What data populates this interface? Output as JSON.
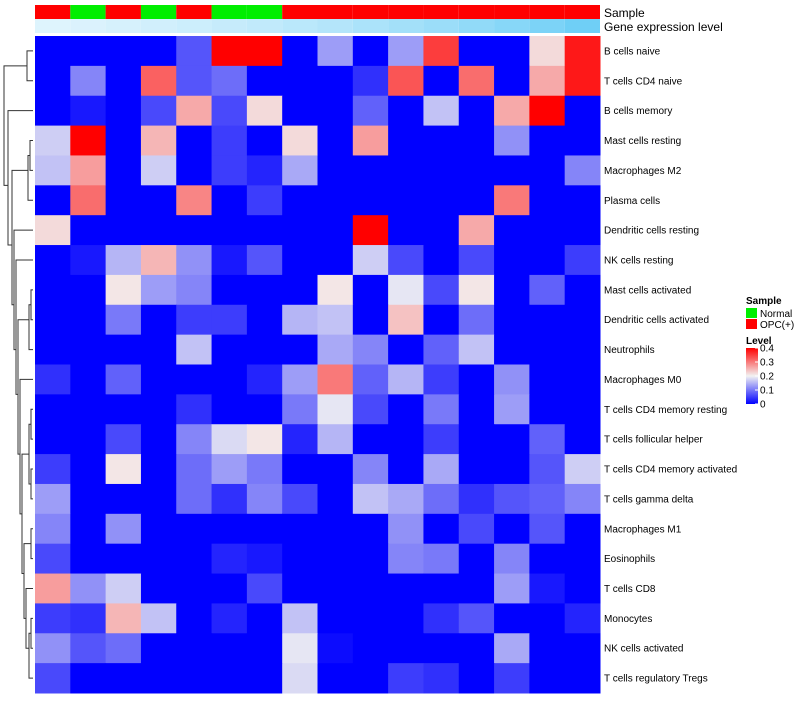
{
  "chart_data": {
    "type": "heatmap",
    "title": "",
    "rows": [
      "B cells naive",
      "T cells CD4 naive",
      "B cells memory",
      "Mast cells resting",
      "Macrophages M2",
      "Plasma cells",
      "Dendritic cells resting",
      "NK cells resting",
      "Mast cells activated",
      "Dendritic cells activated",
      "Neutrophils",
      "Macrophages M0",
      "T cells CD4 memory resting",
      "T cells follicular helper",
      "T cells CD4 memory activated",
      "T cells gamma delta",
      "Macrophages M1",
      "Eosinophils",
      "T cells CD8",
      "Monocytes",
      "NK cells activated",
      "T cells regulatory  Tregs"
    ],
    "values": [
      [
        0,
        0,
        0,
        0,
        0.07,
        0.4,
        0.4,
        0,
        0.13,
        0,
        0.13,
        0.35,
        0,
        0,
        0.22,
        0.38
      ],
      [
        0,
        0.11,
        0,
        0.32,
        0.07,
        0.09,
        0,
        0,
        0,
        0.04,
        0.33,
        0,
        0.31,
        0,
        0.26,
        0.38
      ],
      [
        0,
        0.02,
        0,
        0.06,
        0.26,
        0.06,
        0.22,
        0,
        0,
        0.08,
        0,
        0.16,
        0,
        0.26,
        0.4,
        0
      ],
      [
        0.17,
        0.4,
        0,
        0.25,
        0,
        0.05,
        0,
        0.22,
        0,
        0.27,
        0,
        0,
        0,
        0.12,
        0,
        0
      ],
      [
        0.16,
        0.27,
        0,
        0.17,
        0,
        0.05,
        0.03,
        0.14,
        0,
        0,
        0,
        0,
        0,
        0,
        0,
        0.11
      ],
      [
        0,
        0.31,
        0,
        0,
        0.29,
        0,
        0.05,
        0,
        0,
        0,
        0,
        0,
        0,
        0.3,
        0,
        0
      ],
      [
        0.22,
        0,
        0,
        0,
        0,
        0,
        0,
        0,
        0,
        0.4,
        0,
        0,
        0.26,
        0,
        0,
        0
      ],
      [
        0,
        0.02,
        0.15,
        0.25,
        0.12,
        0.02,
        0.07,
        0,
        0,
        0.17,
        0.06,
        0,
        0.06,
        0,
        0,
        0.05
      ],
      [
        0,
        0,
        0.21,
        0.13,
        0.11,
        0,
        0,
        0,
        0.21,
        0,
        0.19,
        0.06,
        0.21,
        0,
        0.08,
        0
      ],
      [
        0,
        0,
        0.1,
        0,
        0.05,
        0.05,
        0,
        0.15,
        0.16,
        0,
        0.24,
        0,
        0.09,
        0,
        0,
        0
      ],
      [
        0,
        0,
        0,
        0,
        0.16,
        0,
        0,
        0,
        0.14,
        0.11,
        0,
        0.08,
        0.16,
        0,
        0,
        0
      ],
      [
        0.04,
        0,
        0.08,
        0,
        0,
        0,
        0.03,
        0.13,
        0.3,
        0.08,
        0.15,
        0.05,
        0,
        0.12,
        0,
        0
      ],
      [
        0,
        0,
        0,
        0,
        0.04,
        0,
        0,
        0.1,
        0.19,
        0.06,
        0,
        0.1,
        0,
        0.13,
        0,
        0
      ],
      [
        0,
        0,
        0.06,
        0,
        0.11,
        0.18,
        0.21,
        0.03,
        0.15,
        0,
        0,
        0.05,
        0,
        0,
        0.08,
        0
      ],
      [
        0.05,
        0,
        0.21,
        0,
        0.09,
        0.13,
        0.1,
        0,
        0,
        0.11,
        0,
        0.14,
        0,
        0,
        0.07,
        0.17
      ],
      [
        0.13,
        0,
        0,
        0,
        0.09,
        0.04,
        0.11,
        0.06,
        0,
        0.16,
        0.14,
        0.09,
        0.04,
        0.07,
        0.08,
        0.11
      ],
      [
        0.11,
        0,
        0.12,
        0,
        0,
        0,
        0,
        0,
        0,
        0,
        0.12,
        0,
        0.06,
        0,
        0.07,
        0
      ],
      [
        0.06,
        0,
        0,
        0,
        0,
        0.03,
        0.02,
        0,
        0,
        0,
        0.11,
        0.1,
        0,
        0.11,
        0,
        0
      ],
      [
        0.27,
        0.12,
        0.17,
        0,
        0,
        0,
        0.06,
        0,
        0,
        0,
        0,
        0,
        0,
        0.13,
        0.02,
        0
      ],
      [
        0.05,
        0.04,
        0.25,
        0.16,
        0,
        0.03,
        0,
        0.16,
        0,
        0,
        0,
        0.04,
        0.07,
        0,
        0,
        0.03
      ],
      [
        0.12,
        0.07,
        0.09,
        0,
        0,
        0,
        0,
        0.19,
        0.01,
        0,
        0,
        0,
        0,
        0.14,
        0,
        0
      ],
      [
        0.06,
        0,
        0,
        0,
        0,
        0,
        0,
        0.18,
        0,
        0,
        0.05,
        0.04,
        0,
        0.05,
        0,
        0
      ]
    ],
    "columns": 16,
    "sample": [
      "OPC(+)",
      "Normal",
      "OPC(+)",
      "Normal",
      "OPC(+)",
      "Normal",
      "Normal",
      "OPC(+)",
      "OPC(+)",
      "OPC(+)",
      "OPC(+)",
      "OPC(+)",
      "OPC(+)",
      "OPC(+)",
      "OPC(+)",
      "OPC(+)"
    ],
    "gene_expression_level": [
      0.12,
      0.14,
      0.17,
      0.2,
      0.23,
      0.27,
      0.3,
      0.34,
      0.38,
      0.43,
      0.48,
      0.53,
      0.59,
      0.65,
      0.72,
      0.8
    ],
    "annotation_tracks": [
      "Sample",
      "Gene expression level"
    ],
    "sample_colors": {
      "Normal": "#00ee00",
      "OPC(+)": "#ff0000"
    },
    "expression_colors": {
      "low": "#f2fafe",
      "high": "#4ec4f4"
    },
    "heat_colors": {
      "low": "#0000ff",
      "mid": "#f2f2f2",
      "high": "#ff0000"
    },
    "value_range": [
      0,
      0.4
    ],
    "legends": [
      {
        "title": "Sample",
        "entries": [
          "Normal",
          "OPC(+)"
        ]
      },
      {
        "title": "Level",
        "ticks": [
          "0.4",
          "0.3",
          "0.2",
          "0.1",
          "0"
        ],
        "tick_values": [
          0.4,
          0.3,
          0.2,
          0.1,
          0
        ]
      }
    ],
    "row_dendrogram": true
  }
}
